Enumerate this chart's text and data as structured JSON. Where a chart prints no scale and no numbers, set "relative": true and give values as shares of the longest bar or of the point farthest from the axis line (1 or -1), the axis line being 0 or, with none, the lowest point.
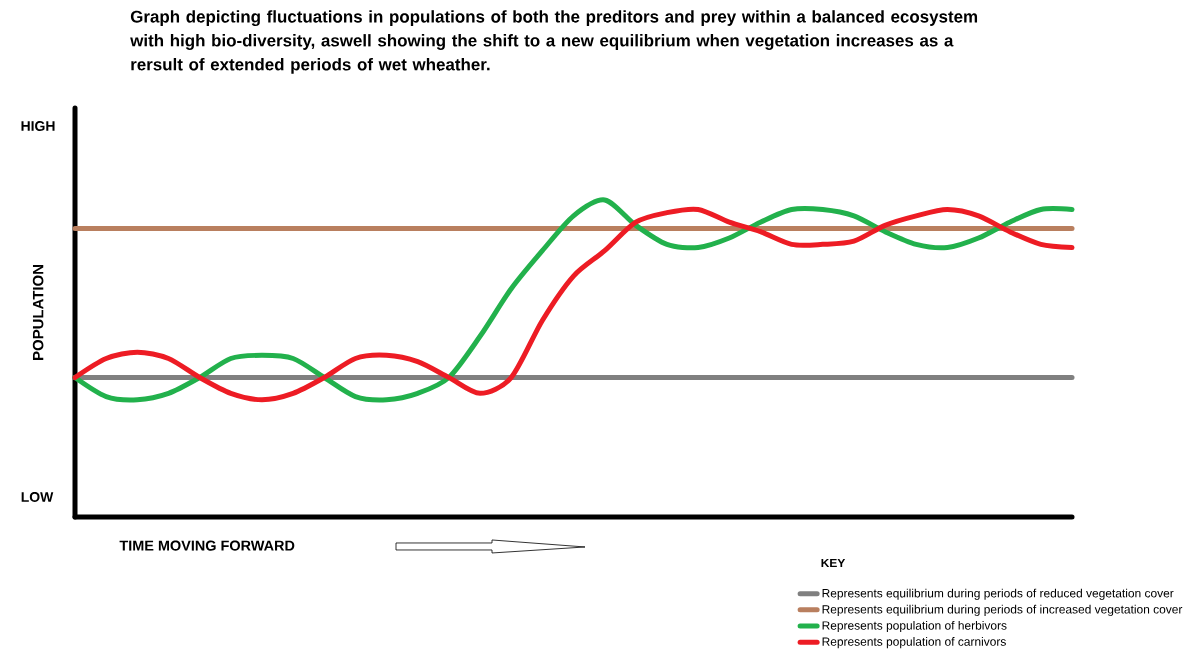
{
  "chart_data": {
    "type": "line",
    "relative": true,
    "title": "Graph depicting fluctuations in populations of both the preditors and prey within a balanced ecosystem with high bio-diversity, aswell showing the shift to a new equilibrium when vegetation increases as a rersult of extended periods of wet wheather.",
    "xlabel": "TIME MOVING FORWARD",
    "ylabel": "POPULATION",
    "legend_title": "KEY",
    "legend": "bottom right",
    "annotations": [
      "HIGH",
      "LOW"
    ],
    "categories": [
      null,
      null,
      null,
      null,
      null,
      null,
      null,
      null,
      null,
      null,
      null,
      null,
      null,
      null,
      null,
      null,
      null,
      null,
      null,
      null,
      null,
      null,
      null,
      null,
      null,
      null,
      null,
      null,
      null,
      null,
      null,
      null,
      null
    ],
    "series": [
      {
        "name": "Represents equilibrium during periods of reduced vegetation cover",
        "color": "#808080",
        "values": [
          0.44,
          0.44,
          0.44,
          0.44,
          0.44,
          0.44,
          0.44,
          0.44,
          0.44,
          0.44,
          0.44,
          0.44,
          0.44,
          0.44,
          0.44,
          0.44,
          0.44,
          0.44,
          0.44,
          0.44,
          0.44,
          0.44,
          0.44,
          0.44,
          0.44,
          0.44,
          0.44,
          0.44,
          0.44,
          0.44,
          0.44,
          0.44,
          0.44
        ]
      },
      {
        "name": "Represents equilibrium during periods of increased vegetation  cover",
        "color": "#b97f5f",
        "values": [
          0.91,
          0.91,
          0.91,
          0.91,
          0.91,
          0.91,
          0.91,
          0.91,
          0.91,
          0.91,
          0.91,
          0.91,
          0.91,
          0.91,
          0.91,
          0.91,
          0.91,
          0.91,
          0.91,
          0.91,
          0.91,
          0.91,
          0.91,
          0.91,
          0.91,
          0.91,
          0.91,
          0.91,
          0.91,
          0.91,
          0.91,
          0.91,
          0.91
        ]
      },
      {
        "name": "Represents population of herbivors",
        "color": "#22b14c",
        "values": [
          0.44,
          0.38,
          0.37,
          0.39,
          0.44,
          0.5,
          0.51,
          0.5,
          0.44,
          0.38,
          0.37,
          0.39,
          0.44,
          0.57,
          0.72,
          0.84,
          0.95,
          1.0,
          0.92,
          0.86,
          0.85,
          0.88,
          0.93,
          0.97,
          0.97,
          0.95,
          0.9,
          0.86,
          0.85,
          0.88,
          0.93,
          0.97,
          0.97
        ]
      },
      {
        "name": "Represents population of carnivors",
        "color": "#ed1c24",
        "values": [
          0.44,
          0.5,
          0.52,
          0.5,
          0.44,
          0.39,
          0.37,
          0.39,
          0.44,
          0.5,
          0.51,
          0.49,
          0.44,
          0.39,
          0.44,
          0.62,
          0.76,
          0.84,
          0.93,
          0.96,
          0.97,
          0.93,
          0.9,
          0.86,
          0.86,
          0.87,
          0.92,
          0.95,
          0.97,
          0.95,
          0.9,
          0.86,
          0.85
        ]
      }
    ]
  }
}
